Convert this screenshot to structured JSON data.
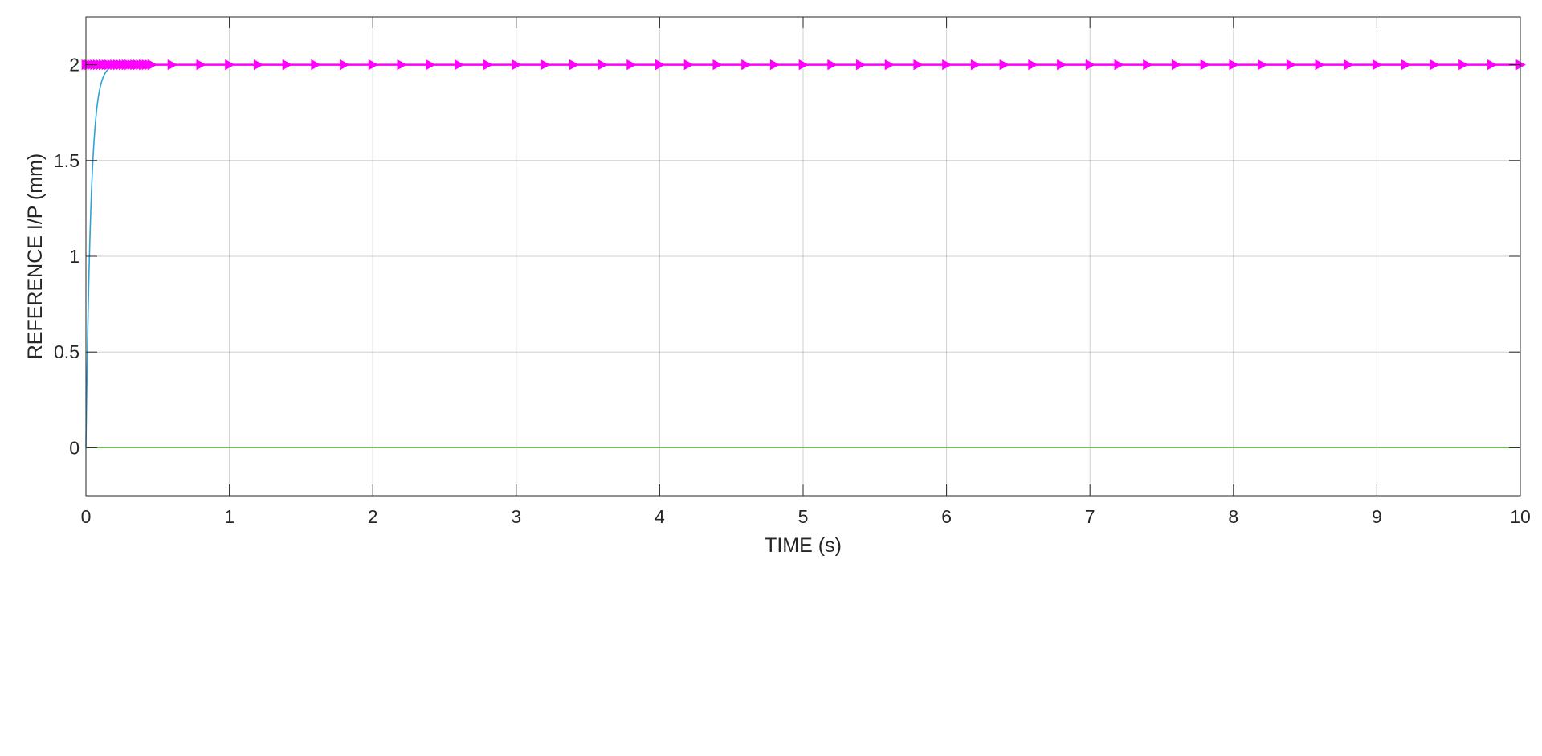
{
  "chart_data": {
    "type": "line",
    "title": "",
    "xlabel": "TIME (s)",
    "ylabel": "REFERENCE I/P (mm)",
    "xlim": [
      0,
      10
    ],
    "ylim": [
      -0.25,
      2.25
    ],
    "xticks": [
      0,
      1,
      2,
      3,
      4,
      5,
      6,
      7,
      8,
      9,
      10
    ],
    "yticks": [
      0,
      0.5,
      1,
      1.5,
      2
    ],
    "xtick_labels": [
      "0",
      "1",
      "2",
      "3",
      "4",
      "5",
      "6",
      "7",
      "8",
      "9",
      "10"
    ],
    "ytick_labels": [
      "0",
      "0.5",
      "1",
      "1.5",
      "2"
    ],
    "grid": true,
    "legend": "none",
    "series": [
      {
        "kind": "reference-step",
        "color": "#ff00ff",
        "marker": "triangle-right",
        "value": 2,
        "x_start": 0,
        "x_end": 10,
        "dense_marker_step": 0.02,
        "dense_marker_until": 0.46,
        "marker_step": 0.2
      },
      {
        "kind": "step-response",
        "color": "#2ea3d6",
        "final_value": 2,
        "time_constant": 0.035,
        "x_start": 0,
        "x_end": 10
      },
      {
        "kind": "constant",
        "color": "#66cc33",
        "value": 0,
        "x_start": 0,
        "x_end": 10
      }
    ]
  }
}
